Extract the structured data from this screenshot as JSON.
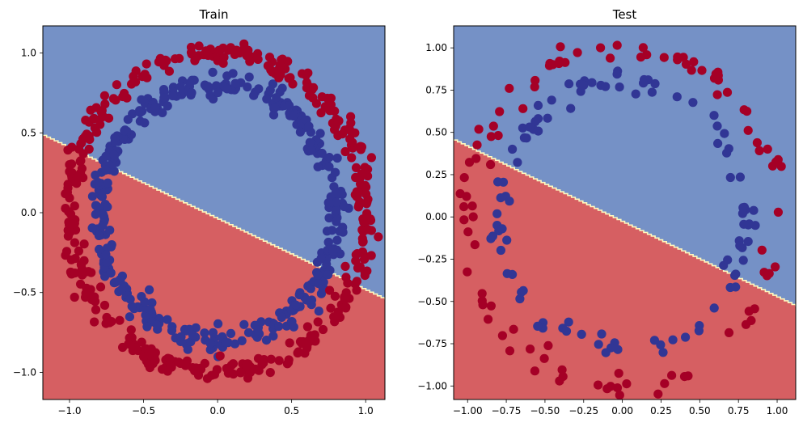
{
  "colors": {
    "class0_point": "#313695",
    "class1_point": "#a50026",
    "region_upper": "#7591c6",
    "region_lower": "#d65f62",
    "boundary_band": "#fff9bf",
    "frame": "#000000"
  },
  "chart_data": [
    {
      "type": "scatter",
      "title": "Train",
      "xlabel": "",
      "ylabel": "",
      "xlim": [
        -1.18,
        1.13
      ],
      "ylim": [
        -1.17,
        1.17
      ],
      "xticks": [
        -1.0,
        -0.5,
        0.0,
        0.5,
        1.0
      ],
      "xtick_labels": [
        "−1.0",
        "−0.5",
        "0.0",
        "0.5",
        "1.0"
      ],
      "yticks": [
        -1.0,
        -0.5,
        0.0,
        0.5,
        1.0
      ],
      "ytick_labels": [
        "−1.0",
        "−0.5",
        "0.0",
        "0.5",
        "1.0"
      ],
      "decision_boundary": {
        "slope": -0.445,
        "intercept": -0.035
      },
      "series": [
        {
          "name": "0",
          "color_key": "class0_point",
          "shape": "circle",
          "radius": 0.8,
          "count": 400,
          "seed": 11
        },
        {
          "name": "1",
          "color_key": "class1_point",
          "shape": "circle",
          "radius": 1.0,
          "count": 400,
          "seed": 23
        }
      ]
    },
    {
      "type": "scatter",
      "title": "Test",
      "xlabel": "",
      "ylabel": "",
      "xlim": [
        -1.09,
        1.12
      ],
      "ylim": [
        -1.08,
        1.13
      ],
      "xticks": [
        -1.0,
        -0.75,
        -0.5,
        -0.25,
        0.0,
        0.25,
        0.5,
        0.75,
        1.0
      ],
      "xtick_labels": [
        "−1.00",
        "−0.75",
        "−0.50",
        "−0.25",
        "0.00",
        "0.25",
        "0.50",
        "0.75",
        "1.00"
      ],
      "yticks": [
        -1.0,
        -0.75,
        -0.5,
        -0.25,
        0.0,
        0.25,
        0.5,
        0.75,
        1.0
      ],
      "ytick_labels": [
        "−1.00",
        "−0.75",
        "−0.50",
        "−0.25",
        "0.00",
        "0.25",
        "0.50",
        "0.75",
        "1.00"
      ],
      "decision_boundary": {
        "slope": -0.445,
        "intercept": -0.025
      },
      "series": [
        {
          "name": "0",
          "color_key": "class0_point",
          "shape": "circle",
          "radius": 0.8,
          "count": 100,
          "seed": 37
        },
        {
          "name": "1",
          "color_key": "class1_point",
          "shape": "circle",
          "radius": 1.0,
          "count": 100,
          "seed": 53
        }
      ]
    }
  ]
}
